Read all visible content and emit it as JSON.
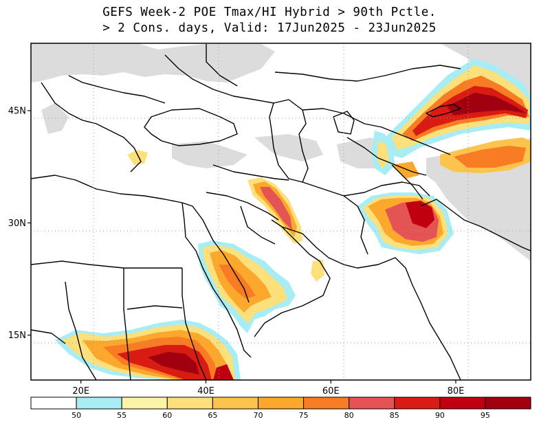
{
  "title": {
    "line1": "GEFS Week-2 POE Tmax/HI Hybrid > 90th Pctle.",
    "line2": "> 2 Cons. days, Valid: 17Jun2025 - 23Jun2025"
  },
  "map": {
    "lon_range": [
      12,
      92
    ],
    "lat_range": [
      9,
      54
    ],
    "x_ticks": [
      {
        "lon": 20,
        "label": "20E"
      },
      {
        "lon": 40,
        "label": "40E"
      },
      {
        "lon": 60,
        "label": "60E"
      },
      {
        "lon": 80,
        "label": "80E"
      }
    ],
    "y_ticks": [
      {
        "lat": 45,
        "label": "45N"
      },
      {
        "lat": 30,
        "label": "30N"
      },
      {
        "lat": 15,
        "label": "15N"
      }
    ],
    "grid": true
  },
  "colorbar": {
    "unit_percent": true,
    "bins": [
      {
        "color": "#ffffff",
        "label": ""
      },
      {
        "color": "#a8ecf4",
        "label": "50"
      },
      {
        "color": "#fcf4a8",
        "label": "55"
      },
      {
        "color": "#fce07c",
        "label": "60"
      },
      {
        "color": "#fcc44c",
        "label": "65"
      },
      {
        "color": "#fca82c",
        "label": "70"
      },
      {
        "color": "#f87c24",
        "label": "75"
      },
      {
        "color": "#e45454",
        "label": "80"
      },
      {
        "color": "#d81c14",
        "label": "85"
      },
      {
        "color": "#c00010",
        "label": "90"
      },
      {
        "color": "#a00010",
        "label": "95"
      }
    ]
  },
  "colors": {
    "land_missing": "#dcdcdc",
    "border": "#000000"
  }
}
